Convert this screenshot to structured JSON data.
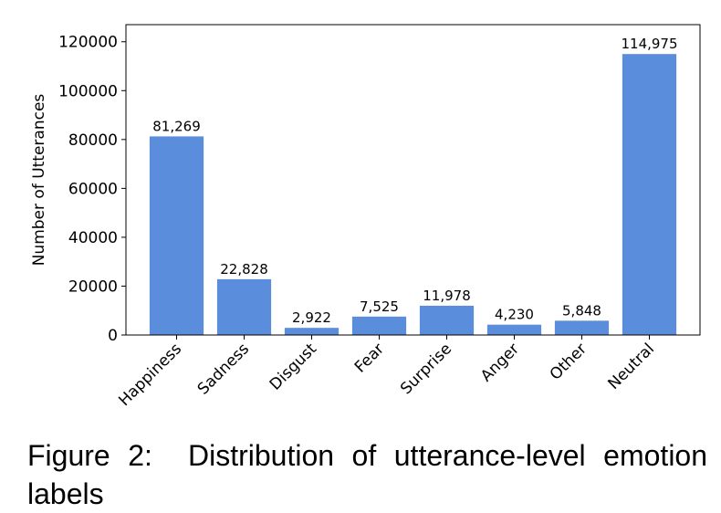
{
  "chart_data": {
    "type": "bar",
    "categories": [
      "Happiness",
      "Sadness",
      "Disgust",
      "Fear",
      "Surprise",
      "Anger",
      "Other",
      "Neutral"
    ],
    "values": [
      81269,
      22828,
      2922,
      7525,
      11978,
      4230,
      5848,
      114975
    ],
    "data_labels": [
      "81,269",
      "22,828",
      "2,922",
      "7,525",
      "11,978",
      "4,230",
      "5,848",
      "114,975"
    ],
    "ylabel": "Number of Utterances",
    "xlabel": "",
    "ylim": [
      0,
      127000
    ],
    "yticks": [
      0,
      20000,
      40000,
      60000,
      80000,
      100000,
      120000
    ],
    "ytick_labels": [
      "0",
      "20000",
      "40000",
      "60000",
      "80000",
      "100000",
      "120000"
    ],
    "bar_color": "#5b8ddd",
    "grid": false
  },
  "caption": {
    "figure_label": "Figure 2:",
    "text": "Distribution of utterance-level emotion labels"
  }
}
